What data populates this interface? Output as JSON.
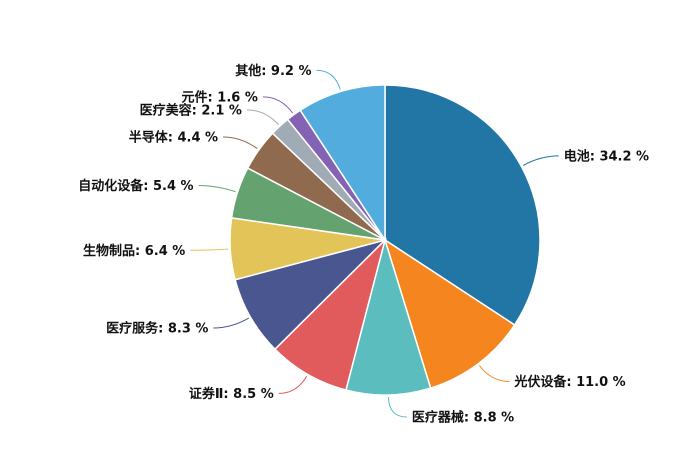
{
  "chart_data": {
    "type": "pie",
    "label_format": "{name}: {value} %",
    "slices": [
      {
        "name": "电池",
        "value": 34.2,
        "color": "#2176a5"
      },
      {
        "name": "光伏设备",
        "value": 11.0,
        "color": "#f5851f"
      },
      {
        "name": "医疗器械",
        "value": 8.8,
        "color": "#5cbdbf"
      },
      {
        "name": "证券Ⅱ",
        "value": 8.5,
        "color": "#e15a5c"
      },
      {
        "name": "医疗服务",
        "value": 8.3,
        "color": "#4a568f"
      },
      {
        "name": "生物制品",
        "value": 6.4,
        "color": "#e3c459"
      },
      {
        "name": "自动化设备",
        "value": 5.4,
        "color": "#64a270"
      },
      {
        "name": "半导体",
        "value": 4.4,
        "color": "#8f6a4e"
      },
      {
        "name": "医疗美容",
        "value": 2.1,
        "color": "#a1abb5"
      },
      {
        "name": "元件",
        "value": 1.6,
        "color": "#8462b4"
      },
      {
        "name": "其他",
        "value": 9.2,
        "color": "#53acde"
      }
    ]
  }
}
